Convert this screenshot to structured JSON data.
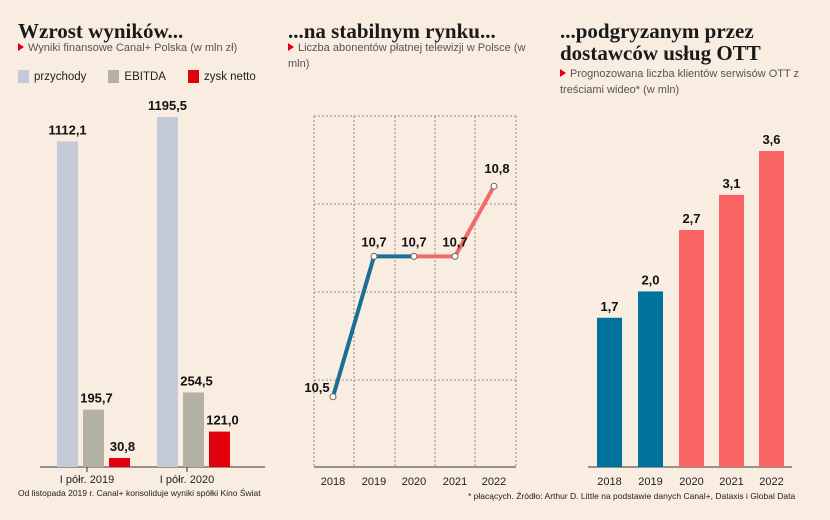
{
  "panels": [
    {
      "title": "Wzrost wyników...",
      "subtitle": "Wyniki finansowe Canal+ Polska (w mln zł)",
      "footnote": "Od listopada 2019 r. Canal+ konsoliduje wyniki spółki Kino Świat"
    },
    {
      "title": "...na stabilnym rynku...",
      "subtitle": "Liczba abonentów płatnej telewizji w Polsce (w mln)"
    },
    {
      "title_line1": "...podgryzanym przez",
      "title_line2": "dostawców usług OTT",
      "subtitle": "Prognozowana liczba klientów serwisów OTT z treściami wideo* (w mln)",
      "footnote": "* płacących. Źródło: Arthur D. Little na podstawie danych Canal+, Dataxis i Global Data"
    }
  ],
  "chart_data": [
    {
      "type": "bar",
      "categories": [
        "I półr. 2019",
        "I półr. 2020"
      ],
      "series": [
        {
          "name": "przychody",
          "color": "#c4cad8",
          "values": [
            1112.1,
            1195.5
          ],
          "labels": [
            "1112,1",
            "1195,5"
          ]
        },
        {
          "name": "EBITDA",
          "color": "#b3b0a4",
          "values": [
            195.7,
            254.5
          ],
          "labels": [
            "195,7",
            "254,5"
          ]
        },
        {
          "name": "zysk netto",
          "color": "#e2000f",
          "values": [
            30.8,
            121.0
          ],
          "labels": [
            "30,8",
            "121,0"
          ]
        }
      ],
      "ylim": [
        0,
        1195.5
      ],
      "grid": false
    },
    {
      "type": "line",
      "x": [
        "2018",
        "2019",
        "2020",
        "2021",
        "2022"
      ],
      "values": [
        10.5,
        10.7,
        10.7,
        10.7,
        10.8
      ],
      "labels": [
        "10,5",
        "10,7",
        "10,7",
        "10,7",
        "10,8"
      ],
      "segment_colors": [
        "#1a6f96",
        "#1a6f96",
        "#f26b6b",
        "#f26b6b"
      ],
      "grid": true
    },
    {
      "type": "bar",
      "categories": [
        "2018",
        "2019",
        "2020",
        "2021",
        "2022"
      ],
      "values": [
        1.7,
        2.0,
        2.7,
        3.1,
        3.6
      ],
      "labels": [
        "1,7",
        "2,0",
        "2,7",
        "3,1",
        "3,6"
      ],
      "colors": [
        "#00729e",
        "#00729e",
        "#fa6464",
        "#fa6464",
        "#fa6464"
      ],
      "grid": false
    }
  ]
}
